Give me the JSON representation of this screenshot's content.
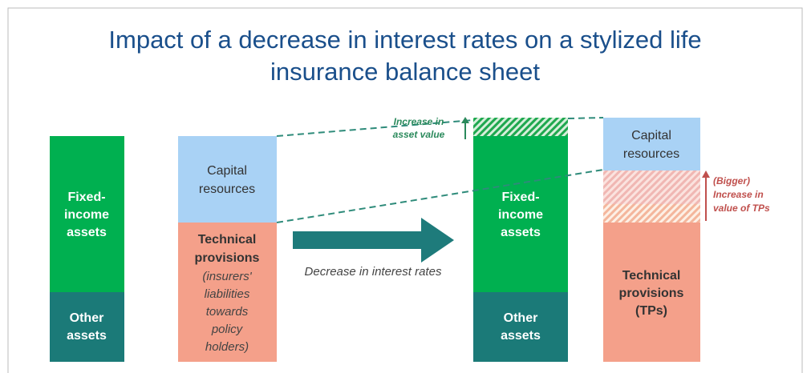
{
  "title": [
    "Impact of a decrease in interest rates on a stylized life",
    "insurance balance sheet"
  ],
  "before": {
    "assets": {
      "fixed_income": [
        "Fixed-",
        "income",
        "assets"
      ],
      "other": [
        "Other",
        "assets"
      ]
    },
    "liabilities": {
      "capital": [
        "Capital",
        "resources"
      ],
      "technical": [
        "Technical",
        "provisions"
      ],
      "technical_note": [
        "(insurers'",
        "liabilities",
        "towards",
        "policy",
        "holders)"
      ]
    }
  },
  "arrow_label": "Decrease in interest rates",
  "after": {
    "assets": {
      "fixed_income": [
        "Fixed-",
        "income",
        "assets"
      ],
      "other": [
        "Other",
        "assets"
      ],
      "annotation": [
        "Increase in",
        "asset value"
      ]
    },
    "liabilities": {
      "capital": [
        "Capital",
        "resources"
      ],
      "technical": [
        "Technical",
        "provisions",
        "(TPs)"
      ],
      "annotation": [
        "(Bigger)",
        "Increase in",
        "value of TPs"
      ]
    }
  }
}
